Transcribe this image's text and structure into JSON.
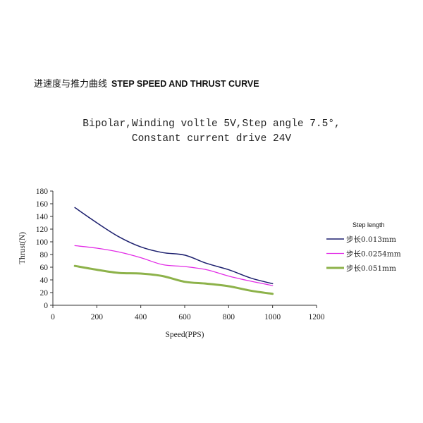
{
  "heading": {
    "cn": "进速度与推力曲线",
    "en": "STEP SPEED AND THRUST CURVE"
  },
  "chart_data": {
    "type": "line",
    "title": "Bipolar,Winding voltle 5V,Step angle 7.5°,",
    "subtitle": "Constant current drive 24V",
    "xlabel": "Speed(PPS)",
    "ylabel": "Thrust(N)",
    "xlim": [
      0,
      1200
    ],
    "ylim": [
      0,
      180
    ],
    "xticks": [
      0,
      200,
      400,
      600,
      800,
      1000,
      1200
    ],
    "yticks": [
      0,
      20,
      40,
      60,
      80,
      100,
      120,
      140,
      160,
      180
    ],
    "grid": false,
    "legend": {
      "title": "Step length",
      "placement": "right"
    },
    "series": [
      {
        "name": "步长0.013mm",
        "color": "#1c1f6e",
        "x": [
          100,
          200,
          300,
          400,
          500,
          600,
          700,
          800,
          900,
          1000
        ],
        "y": [
          154,
          130,
          108,
          92,
          83,
          79,
          66,
          56,
          43,
          34
        ]
      },
      {
        "name": "步长0.0254mm",
        "color": "#e22ce6",
        "x": [
          100,
          200,
          300,
          400,
          500,
          600,
          700,
          800,
          900,
          1000
        ],
        "y": [
          94,
          90,
          84,
          75,
          64,
          61,
          56,
          46,
          38,
          31
        ]
      },
      {
        "name": "步长0.051mm",
        "color": "#8db24a",
        "x": [
          100,
          200,
          300,
          400,
          500,
          600,
          700,
          800,
          900,
          1000
        ],
        "y": [
          62,
          56,
          51,
          50,
          46,
          37,
          34,
          30,
          23,
          18
        ]
      }
    ]
  }
}
